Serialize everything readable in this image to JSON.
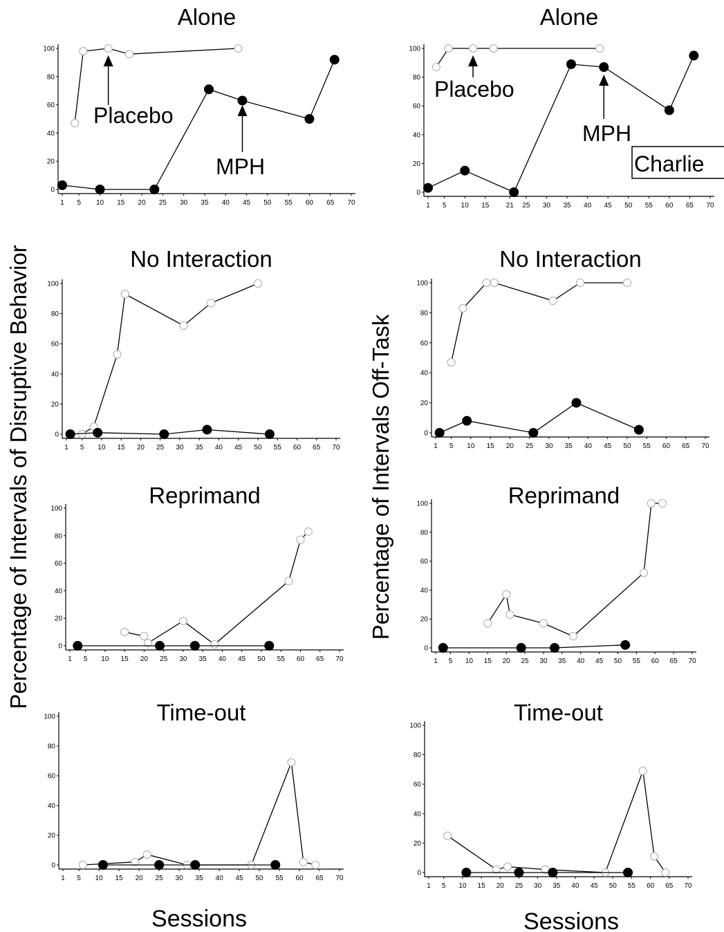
{
  "figure": {
    "ylabel_left": "Percentage of Intervals of Disruptive Behavior",
    "ylabel_right": "Percentage of  Intervals  Off-Task",
    "xlabel": "Sessions",
    "participant_label": "Charlie"
  },
  "chart_data": [
    {
      "type": "line",
      "column": "left",
      "title": "Alone",
      "xlim": [
        1,
        70
      ],
      "ylim": [
        0,
        100
      ],
      "xticks": [
        1,
        5,
        10,
        15,
        20,
        25,
        30,
        35,
        40,
        45,
        50,
        55,
        60,
        65,
        70
      ],
      "yticks": [
        0,
        20,
        40,
        60,
        80,
        100
      ],
      "series": [
        {
          "marker": "open",
          "points": [
            [
              4,
              47
            ],
            [
              6,
              98
            ],
            [
              12,
              100
            ],
            [
              17,
              96
            ],
            [
              43,
              100
            ]
          ]
        },
        {
          "marker": "filled",
          "points": [
            [
              1,
              3
            ],
            [
              10,
              0
            ],
            [
              23,
              0
            ],
            [
              36,
              71
            ],
            [
              44,
              63
            ],
            [
              60,
              50
            ],
            [
              66,
              92
            ]
          ]
        }
      ],
      "annotations": [
        {
          "text": "Placebo",
          "target": [
            12,
            100
          ]
        },
        {
          "text": "MPH",
          "target": [
            44,
            63
          ]
        }
      ]
    },
    {
      "type": "line",
      "column": "right",
      "title": "Alone",
      "xlim": [
        1,
        70
      ],
      "ylim": [
        0,
        100
      ],
      "xticks": [
        1,
        5,
        10,
        15,
        21,
        25,
        30,
        35,
        40,
        45,
        50,
        55,
        60,
        65,
        70
      ],
      "yticks": [
        0,
        20,
        40,
        60,
        80,
        100
      ],
      "series": [
        {
          "marker": "open",
          "points": [
            [
              3,
              87
            ],
            [
              6,
              100
            ],
            [
              12,
              100
            ],
            [
              17,
              100
            ],
            [
              43,
              100
            ]
          ]
        },
        {
          "marker": "filled",
          "points": [
            [
              1,
              3
            ],
            [
              10,
              15
            ],
            [
              22,
              0
            ],
            [
              36,
              89
            ],
            [
              44,
              87
            ],
            [
              60,
              57
            ],
            [
              66,
              95
            ]
          ]
        }
      ],
      "annotations": [
        {
          "text": "Placebo",
          "target": [
            12,
            100
          ]
        },
        {
          "text": "MPH",
          "target": [
            44,
            87
          ]
        }
      ]
    },
    {
      "type": "line",
      "column": "left",
      "title": "No  Interaction",
      "xlim": [
        1,
        70
      ],
      "ylim": [
        0,
        100
      ],
      "xticks": [
        1,
        5,
        10,
        15,
        20,
        25,
        30,
        35,
        40,
        45,
        50,
        55,
        60,
        65,
        70
      ],
      "yticks": [
        0,
        20,
        40,
        60,
        80,
        100
      ],
      "series": [
        {
          "marker": "open",
          "points": [
            [
              5,
              0
            ],
            [
              8,
              5
            ],
            [
              14,
              53
            ],
            [
              16,
              93
            ],
            [
              31,
              72
            ],
            [
              38,
              87
            ],
            [
              50,
              100
            ]
          ]
        },
        {
          "marker": "filled",
          "points": [
            [
              2,
              0
            ],
            [
              9,
              1
            ],
            [
              26,
              0
            ],
            [
              37,
              3
            ],
            [
              53,
              0
            ]
          ]
        }
      ]
    },
    {
      "type": "line",
      "column": "right",
      "title": "No  Interaction",
      "xlim": [
        1,
        70
      ],
      "ylim": [
        0,
        100
      ],
      "xticks": [
        1,
        5,
        10,
        15,
        20,
        25,
        30,
        35,
        40,
        45,
        50,
        55,
        60,
        65,
        70
      ],
      "yticks": [
        0,
        20,
        40,
        60,
        80,
        100
      ],
      "series": [
        {
          "marker": "open",
          "points": [
            [
              5,
              47
            ],
            [
              8,
              83
            ],
            [
              14,
              100
            ],
            [
              16,
              100
            ],
            [
              31,
              88
            ],
            [
              38,
              100
            ],
            [
              50,
              100
            ]
          ]
        },
        {
          "marker": "filled",
          "points": [
            [
              2,
              0
            ],
            [
              9,
              8
            ],
            [
              26,
              0
            ],
            [
              37,
              20
            ],
            [
              53,
              2
            ]
          ]
        }
      ]
    },
    {
      "type": "line",
      "column": "left",
      "title": "Reprimand",
      "xlim": [
        1,
        70
      ],
      "ylim": [
        0,
        100
      ],
      "xticks": [
        1,
        5,
        10,
        15,
        20,
        25,
        30,
        35,
        40,
        45,
        50,
        55,
        60,
        65,
        70
      ],
      "yticks": [
        0,
        20,
        40,
        60,
        80,
        100
      ],
      "series": [
        {
          "marker": "open",
          "points": [
            [
              15,
              10
            ],
            [
              20,
              7
            ],
            [
              21,
              2
            ],
            [
              30,
              18
            ],
            [
              38,
              1
            ],
            [
              57,
              47
            ],
            [
              60,
              77
            ],
            [
              62,
              83
            ]
          ]
        },
        {
          "marker": "filled",
          "points": [
            [
              3,
              0
            ],
            [
              24,
              0
            ],
            [
              33,
              0
            ],
            [
              52,
              0
            ]
          ]
        }
      ]
    },
    {
      "type": "line",
      "column": "right",
      "title": "Reprimand",
      "xlim": [
        1,
        70
      ],
      "ylim": [
        0,
        100
      ],
      "xticks": [
        1,
        5,
        10,
        15,
        20,
        25,
        30,
        35,
        40,
        45,
        50,
        55,
        60,
        65,
        70
      ],
      "yticks": [
        0,
        20,
        40,
        60,
        80,
        100
      ],
      "series": [
        {
          "marker": "open",
          "points": [
            [
              15,
              17
            ],
            [
              20,
              37
            ],
            [
              21,
              23
            ],
            [
              30,
              17
            ],
            [
              38,
              8
            ],
            [
              57,
              52
            ],
            [
              59,
              100
            ],
            [
              62,
              100
            ]
          ]
        },
        {
          "marker": "filled",
          "points": [
            [
              3,
              0
            ],
            [
              24,
              0
            ],
            [
              33,
              0
            ],
            [
              52,
              2
            ]
          ]
        }
      ]
    },
    {
      "type": "line",
      "column": "left",
      "title": "Time-out",
      "xlim": [
        1,
        70
      ],
      "ylim": [
        0,
        100
      ],
      "xticks": [
        1,
        5,
        10,
        15,
        20,
        25,
        30,
        35,
        40,
        45,
        50,
        55,
        60,
        65,
        70
      ],
      "yticks": [
        0,
        20,
        40,
        60,
        80,
        100
      ],
      "series": [
        {
          "marker": "open",
          "points": [
            [
              6,
              0
            ],
            [
              19,
              2
            ],
            [
              22,
              7
            ],
            [
              32,
              0
            ],
            [
              48,
              0
            ],
            [
              58,
              69
            ],
            [
              61,
              2
            ],
            [
              64,
              0
            ]
          ]
        },
        {
          "marker": "filled",
          "points": [
            [
              11,
              0
            ],
            [
              25,
              0
            ],
            [
              34,
              0
            ],
            [
              54,
              0
            ]
          ]
        }
      ]
    },
    {
      "type": "line",
      "column": "right",
      "title": "Time-out",
      "xlim": [
        1,
        70
      ],
      "ylim": [
        0,
        100
      ],
      "xticks": [
        1,
        5,
        10,
        15,
        20,
        25,
        30,
        35,
        40,
        45,
        50,
        55,
        60,
        65,
        70
      ],
      "yticks": [
        0,
        20,
        40,
        60,
        80,
        100
      ],
      "series": [
        {
          "marker": "open",
          "points": [
            [
              6,
              25
            ],
            [
              19,
              2
            ],
            [
              22,
              4
            ],
            [
              32,
              2
            ],
            [
              48,
              0
            ],
            [
              58,
              69
            ],
            [
              61,
              11
            ],
            [
              64,
              0
            ]
          ]
        },
        {
          "marker": "filled",
          "points": [
            [
              11,
              0
            ],
            [
              25,
              0
            ],
            [
              34,
              0
            ],
            [
              54,
              0
            ]
          ]
        }
      ]
    }
  ]
}
